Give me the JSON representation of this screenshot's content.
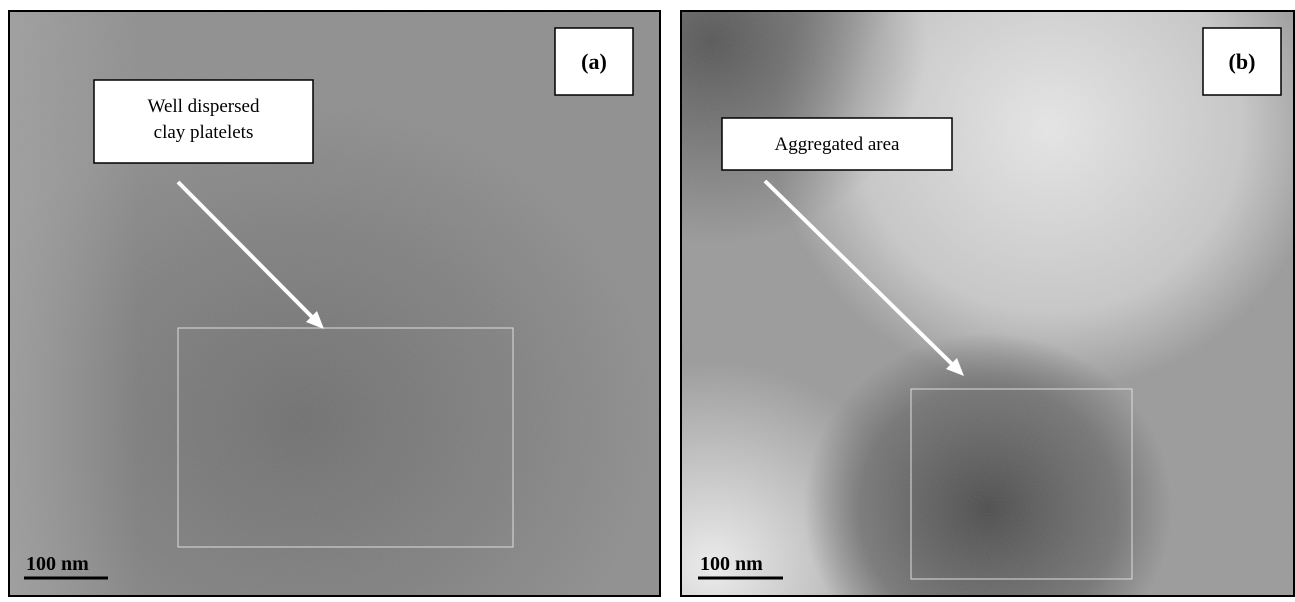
{
  "panels": [
    {
      "label": "(a)",
      "callout": [
        "Well dispersed",
        "clay platelets"
      ],
      "scale_bar": "100 nm"
    },
    {
      "label": "(b)",
      "callout": [
        "Aggregated area"
      ],
      "scale_bar": "100 nm"
    }
  ]
}
